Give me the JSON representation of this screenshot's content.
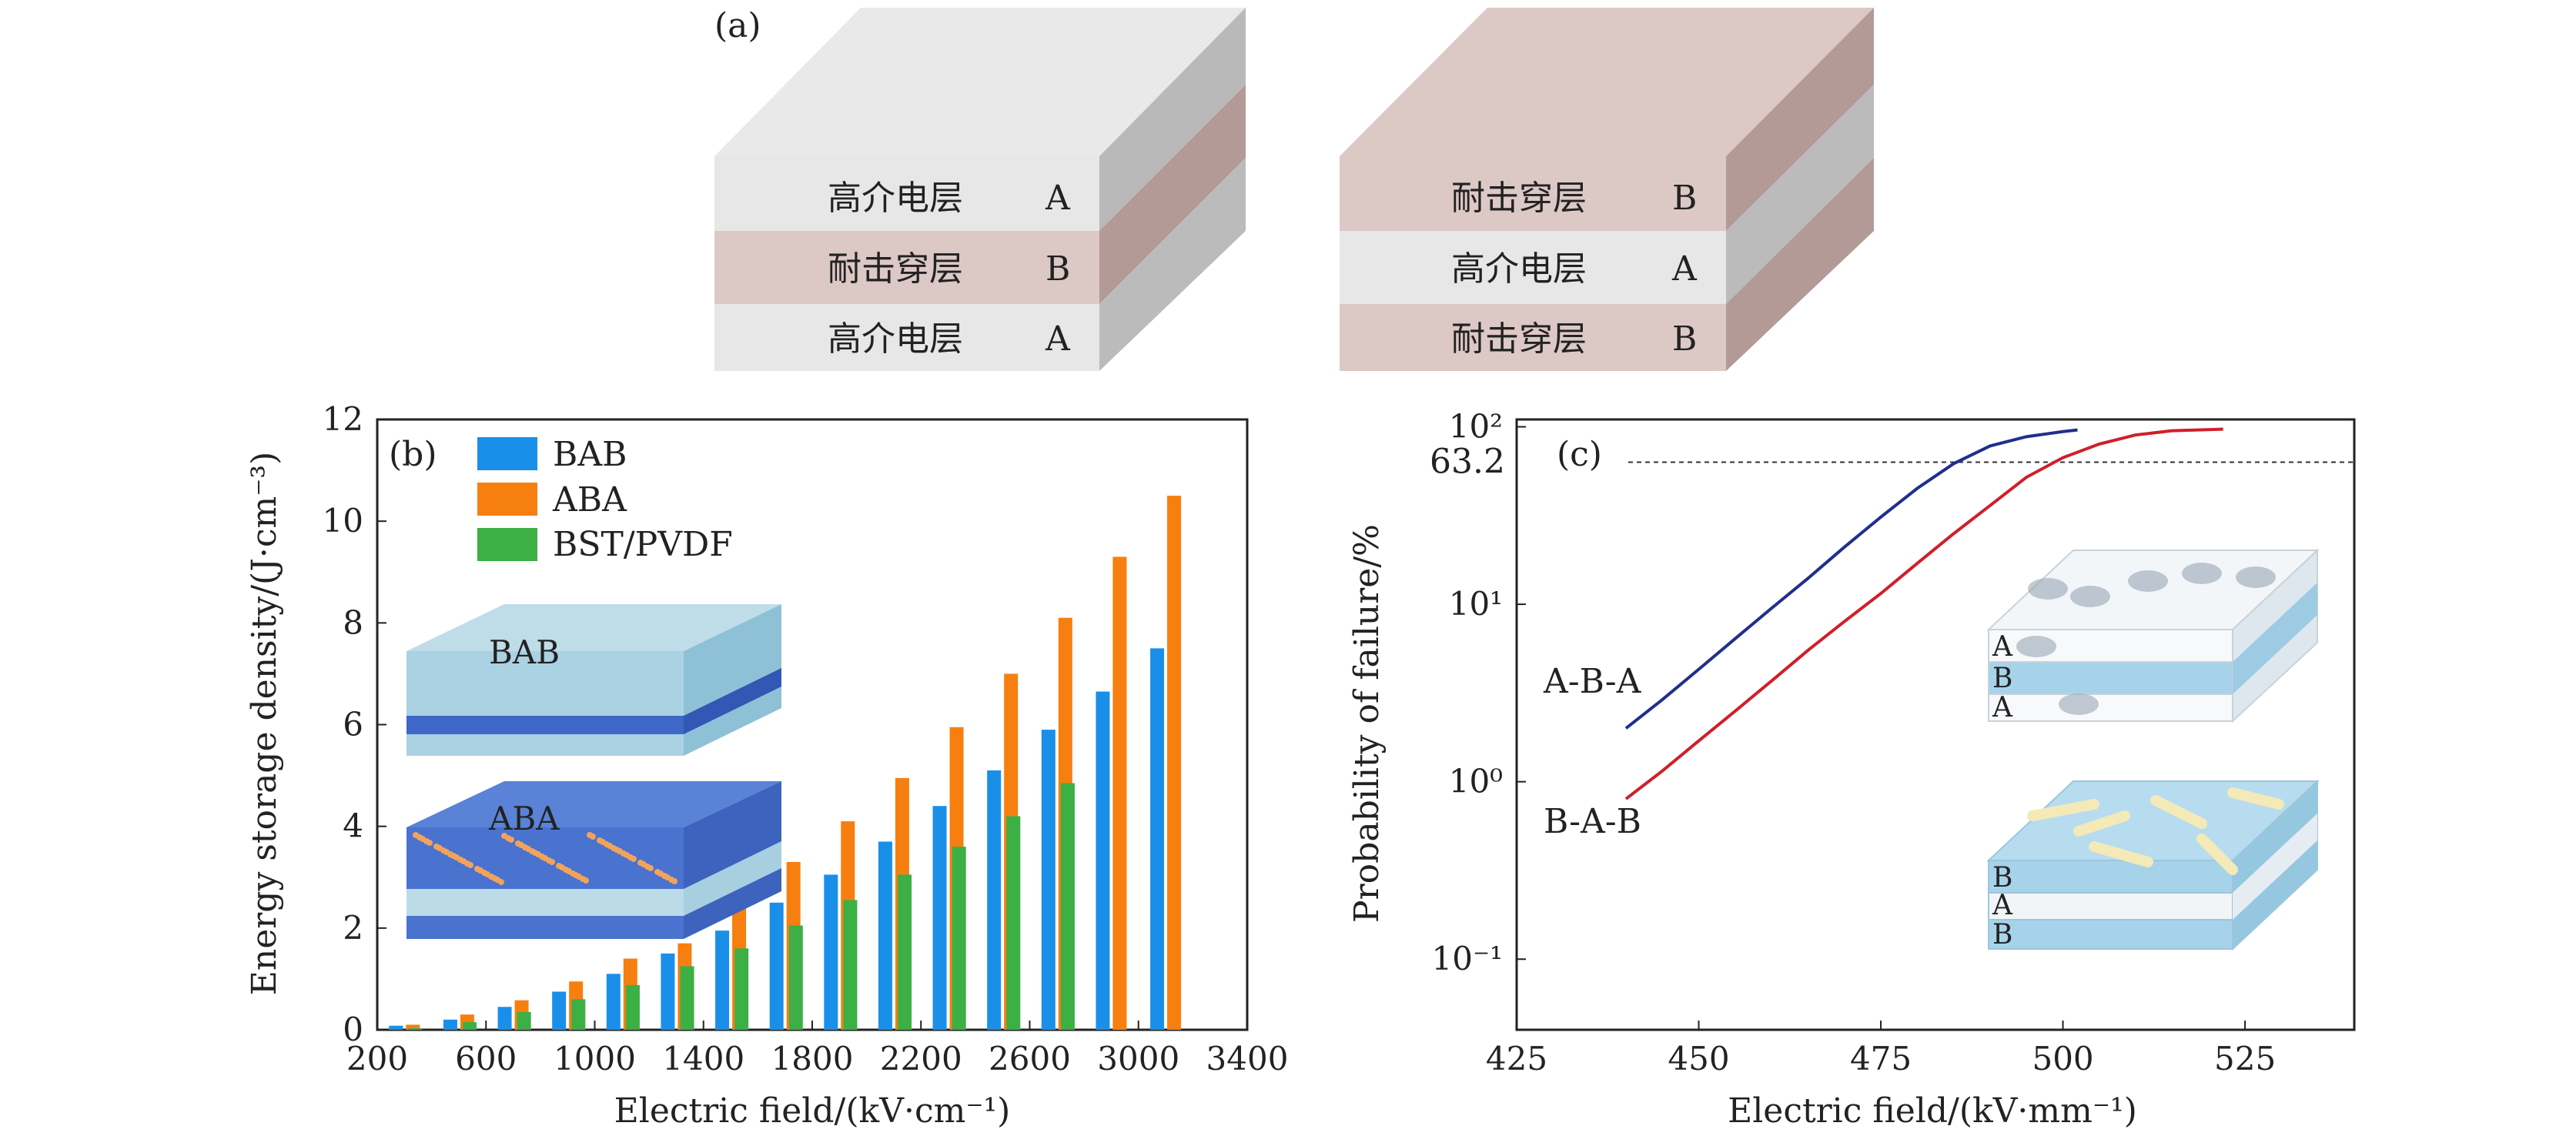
{
  "panel_a": {
    "label": "(a)",
    "stack_left": {
      "layers": [
        {
          "name": "高介电层",
          "letter": "A"
        },
        {
          "name": "耐击穿层",
          "letter": "B"
        },
        {
          "name": "高介电层",
          "letter": "A"
        }
      ]
    },
    "stack_right": {
      "layers": [
        {
          "name": "耐击穿层",
          "letter": "B"
        },
        {
          "name": "高介电层",
          "letter": "A"
        },
        {
          "name": "耐击穿层",
          "letter": "B"
        }
      ]
    },
    "colors": {
      "A": "#e7e7e7",
      "B": "#dcc8c5"
    }
  },
  "chart_data": [
    {
      "panel": "(b)",
      "type": "bar",
      "title": "",
      "xlabel": "Electric field/(kV·cm⁻¹)",
      "ylabel": "Energy storage density/(J·cm⁻³)",
      "xlim": [
        200,
        3400
      ],
      "ylim": [
        0,
        12
      ],
      "xticks": [
        200,
        600,
        1000,
        1400,
        1800,
        2200,
        2600,
        3000,
        3400
      ],
      "xtick_labels": [
        "200",
        "600",
        "1000",
        "1400",
        "1800",
        "2200",
        "2600",
        "3000",
        "3400"
      ],
      "yticks": [
        0,
        2,
        4,
        6,
        8,
        10,
        12
      ],
      "ytick_labels": [
        "0",
        "2",
        "4",
        "6",
        "8",
        "10",
        "12"
      ],
      "legend_position": "top-left",
      "x": [
        300,
        500,
        700,
        900,
        1100,
        1300,
        1500,
        1700,
        1900,
        2100,
        2300,
        2500,
        2700,
        2900,
        3100
      ],
      "series": [
        {
          "name": "BAB",
          "color": "#1a8fea",
          "x": [
            300,
            500,
            700,
            900,
            1100,
            1300,
            1500,
            1700,
            1900,
            2100,
            2300,
            2500,
            2700,
            2900,
            3100
          ],
          "values": [
            0.08,
            0.2,
            0.45,
            0.75,
            1.1,
            1.5,
            1.95,
            2.5,
            3.05,
            3.7,
            4.4,
            5.1,
            5.9,
            6.65,
            7.5
          ]
        },
        {
          "name": "ABA",
          "color": "#f77f10",
          "x": [
            300,
            500,
            700,
            900,
            1100,
            1300,
            1500,
            1700,
            1900,
            2100,
            2300,
            2500,
            2700,
            2900,
            3100
          ],
          "values": [
            0.1,
            0.3,
            0.58,
            0.95,
            1.4,
            1.7,
            2.6,
            3.3,
            4.1,
            4.95,
            5.95,
            7.0,
            8.1,
            9.3,
            10.5
          ]
        },
        {
          "name": "BST/PVDF",
          "color": "#3cb045",
          "x": [
            300,
            500,
            700,
            900,
            1100,
            1300,
            1500,
            1700,
            1900,
            2100,
            2300,
            2500,
            2700
          ],
          "values": [
            0.03,
            0.15,
            0.35,
            0.6,
            0.88,
            1.25,
            1.6,
            2.05,
            2.55,
            3.05,
            3.6,
            4.2,
            4.85
          ]
        }
      ],
      "inset_labels": [
        "BAB",
        "ABA"
      ]
    },
    {
      "panel": "(c)",
      "type": "line",
      "title": "",
      "xlabel": "Electric field/(kV·mm⁻¹)",
      "ylabel": "Probability of failure/%",
      "xlim": [
        425,
        540
      ],
      "ylim": [
        0.04,
        110
      ],
      "y_scale": "log",
      "xticks": [
        425,
        450,
        475,
        500,
        525
      ],
      "xtick_labels": [
        "425",
        "450",
        "475",
        "500",
        "525"
      ],
      "yticks": [
        0.1,
        1,
        10,
        100
      ],
      "ytick_labels": [
        "10⁻¹",
        "10⁰",
        "10¹",
        "10²"
      ],
      "reference_line": {
        "y": 63.2,
        "label": "63.2"
      },
      "series": [
        {
          "name": "A-B-A",
          "color": "#1f2f8f",
          "x": [
            440,
            445,
            450,
            455,
            460,
            465,
            470,
            475,
            480,
            485,
            490,
            495,
            500,
            502
          ],
          "y": [
            2.0,
            2.9,
            4.3,
            6.4,
            9.5,
            14,
            21,
            31,
            45,
            62,
            78,
            88,
            94,
            96
          ]
        },
        {
          "name": "B-A-B",
          "color": "#d01f2a",
          "x": [
            440,
            445,
            450,
            455,
            460,
            465,
            470,
            475,
            480,
            485,
            490,
            495,
            500,
            505,
            510,
            515,
            522
          ],
          "y": [
            0.8,
            1.15,
            1.7,
            2.5,
            3.7,
            5.5,
            8.0,
            11.5,
            17,
            25,
            36,
            52,
            67,
            80,
            90,
            95,
            97
          ]
        }
      ],
      "inset_labels": {
        "top": [
          "A",
          "B",
          "A"
        ],
        "bottom": [
          "B",
          "A",
          "B"
        ]
      }
    }
  ]
}
